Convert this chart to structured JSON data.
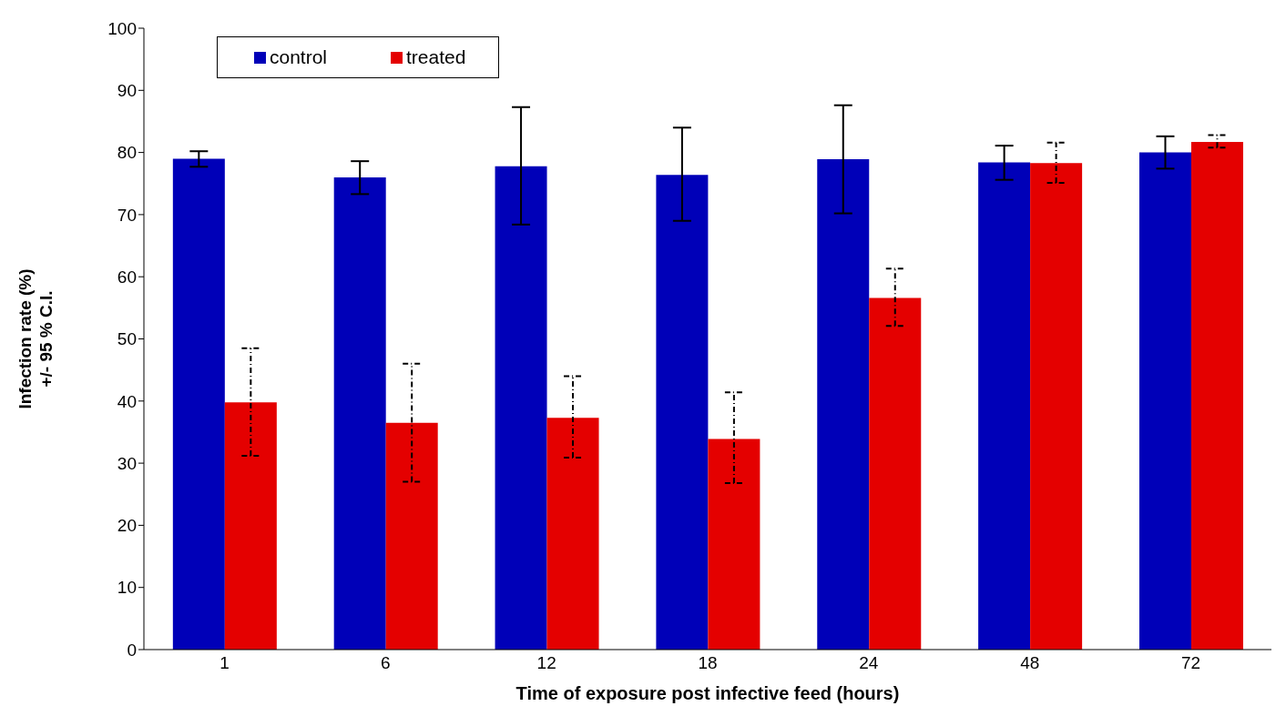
{
  "chart_data": {
    "type": "bar",
    "xlabel": "Time of exposure post infective feed (hours)",
    "ylabel": "Infection rate (%)\n+/- 95 % C.I.",
    "categories": [
      "1",
      "6",
      "12",
      "18",
      "24",
      "48",
      "72"
    ],
    "series": [
      {
        "name": "control",
        "color": "#0000b8",
        "values": [
          79.0,
          76.0,
          77.8,
          76.4,
          78.9,
          78.4,
          80.0
        ],
        "errors": [
          [
            77.7,
            80.2
          ],
          [
            73.3,
            78.6
          ],
          [
            68.4,
            87.3
          ],
          [
            69.0,
            84.0
          ],
          [
            70.2,
            87.6
          ],
          [
            75.6,
            81.1
          ],
          [
            77.4,
            82.6
          ]
        ]
      },
      {
        "name": "treated",
        "color": "#e40000",
        "values": [
          39.8,
          36.5,
          37.3,
          33.9,
          56.6,
          78.3,
          81.7
        ],
        "errors": [
          [
            31.2,
            48.5
          ],
          [
            27.0,
            46.0
          ],
          [
            30.9,
            44.0
          ],
          [
            26.8,
            41.4
          ],
          [
            52.1,
            61.3
          ],
          [
            75.1,
            81.6
          ],
          [
            80.8,
            82.8
          ]
        ]
      }
    ],
    "ylim": [
      0,
      100
    ],
    "yticks": [
      0,
      10,
      20,
      30,
      40,
      50,
      60,
      70,
      80,
      90,
      100
    ],
    "legend": "top left"
  }
}
